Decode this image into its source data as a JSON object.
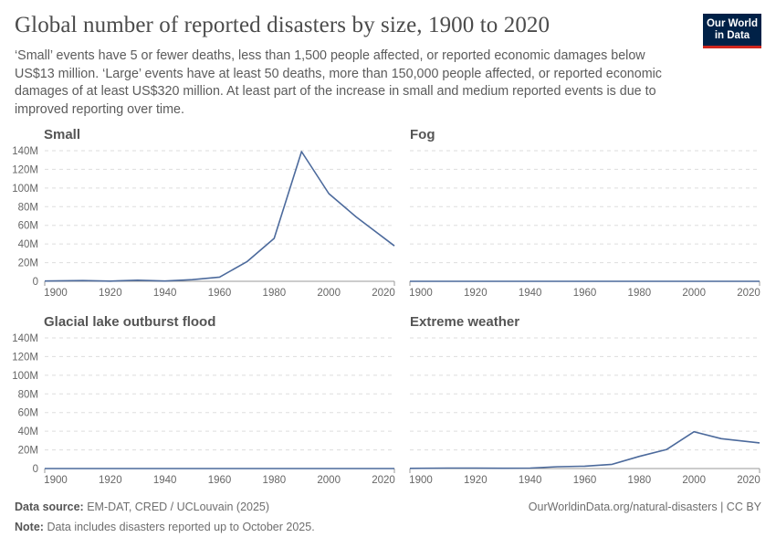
{
  "header": {
    "title": "Global number of reported disasters by size, 1900 to 2020",
    "subtitle": "‘Small’ events have 5 or fewer deaths, less than 1,500 people affected, or reported economic damages below US$13 million. ‘Large’ events have at least 50 deaths, more than 150,000 people affected, or reported economic damages of at least US$320 million. At least part of the increase in small and medium reported events is due to improved reporting over time.",
    "logo": "Our World in Data"
  },
  "footer": {
    "source_label": "Data source:",
    "source": "EM-DAT, CRED / UCLouvain (2025)",
    "note_label": "Note:",
    "note": "Data includes disasters reported up to October 2025.",
    "url": "OurWorldinData.org/natural-disasters | CC BY"
  },
  "colors": {
    "line": "#4c6a9c",
    "grid": "#dddddd",
    "axis": "#999999",
    "text": "#666666"
  },
  "chart_data": {
    "type": "line",
    "layout": "small-multiples 2x2",
    "x": [
      1900,
      1910,
      1920,
      1930,
      1940,
      1950,
      1960,
      1970,
      1980,
      1990,
      2000,
      2010,
      2020
    ],
    "xlim": [
      1896,
      2024
    ],
    "ylim": [
      0,
      140
    ],
    "y_unit": "M",
    "xticks": [
      "1900",
      "1920",
      "1940",
      "1960",
      "1980",
      "2000",
      "2020"
    ],
    "xtick_values": [
      1900,
      1920,
      1940,
      1960,
      1980,
      2000,
      2020
    ],
    "yticks": [
      "0",
      "20M",
      "40M",
      "60M",
      "80M",
      "100M",
      "120M",
      "140M"
    ],
    "ytick_values": [
      0,
      20,
      40,
      60,
      80,
      100,
      120,
      140
    ],
    "grid": true,
    "panels": [
      {
        "title": "Small",
        "values": [
          0.3,
          0.8,
          0.2,
          1.2,
          0.3,
          1.8,
          4.5,
          21,
          46,
          139,
          94,
          69,
          38
        ]
      },
      {
        "title": "Fog",
        "values": [
          0,
          0,
          0,
          0,
          0,
          0,
          0,
          0,
          0,
          0,
          0,
          0,
          0
        ]
      },
      {
        "title": "Glacial lake outburst flood",
        "values": [
          0,
          0,
          0,
          0,
          0,
          0,
          0,
          0,
          0,
          0,
          0,
          0,
          0
        ]
      },
      {
        "title": "Extreme weather",
        "values": [
          0.2,
          0.5,
          0.5,
          0.3,
          0.5,
          2,
          2.5,
          4.5,
          13,
          20.5,
          39.5,
          32,
          27.5
        ]
      }
    ]
  }
}
